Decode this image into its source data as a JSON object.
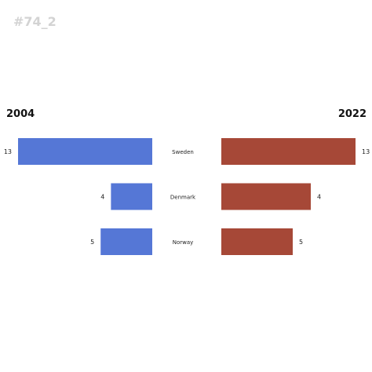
{
  "chart_data": {
    "type": "bar",
    "title": "#74_2",
    "categories": [
      "Sweden",
      "Denmark",
      "Norway"
    ],
    "series": [
      {
        "name": "2004",
        "values": [
          13,
          4,
          5
        ],
        "color": "#5577d6"
      },
      {
        "name": "2022",
        "values": [
          13,
          4,
          5
        ],
        "color": "#a64837"
      }
    ],
    "xlim": [
      0,
      13
    ],
    "grid": false,
    "layout": "back-to-back"
  }
}
